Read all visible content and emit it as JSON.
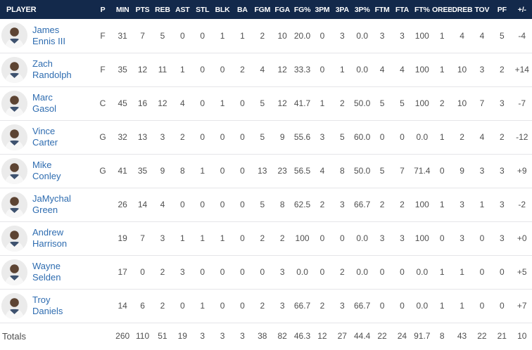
{
  "table": {
    "columns": [
      "PLAYER",
      "P",
      "MIN",
      "PTS",
      "REB",
      "AST",
      "STL",
      "BLK",
      "BA",
      "FGM",
      "FGA",
      "FG%",
      "3PM",
      "3PA",
      "3P%",
      "FTM",
      "FTA",
      "FT%",
      "OREB",
      "DREB",
      "TOV",
      "PF",
      "+/-"
    ],
    "rows": [
      {
        "first": "James",
        "last": "Ennis III",
        "pos": "F",
        "stats": [
          "31",
          "7",
          "5",
          "0",
          "0",
          "1",
          "1",
          "2",
          "10",
          "20.0",
          "0",
          "3",
          "0.0",
          "3",
          "3",
          "100",
          "1",
          "4",
          "4",
          "5",
          "-4"
        ]
      },
      {
        "first": "Zach",
        "last": "Randolph",
        "pos": "F",
        "stats": [
          "35",
          "12",
          "11",
          "1",
          "0",
          "0",
          "2",
          "4",
          "12",
          "33.3",
          "0",
          "1",
          "0.0",
          "4",
          "4",
          "100",
          "1",
          "10",
          "3",
          "2",
          "+14"
        ]
      },
      {
        "first": "Marc",
        "last": "Gasol",
        "pos": "C",
        "stats": [
          "45",
          "16",
          "12",
          "4",
          "0",
          "1",
          "0",
          "5",
          "12",
          "41.7",
          "1",
          "2",
          "50.0",
          "5",
          "5",
          "100",
          "2",
          "10",
          "7",
          "3",
          "-7"
        ]
      },
      {
        "first": "Vince",
        "last": "Carter",
        "pos": "G",
        "stats": [
          "32",
          "13",
          "3",
          "2",
          "0",
          "0",
          "0",
          "5",
          "9",
          "55.6",
          "3",
          "5",
          "60.0",
          "0",
          "0",
          "0.0",
          "1",
          "2",
          "4",
          "2",
          "-12"
        ]
      },
      {
        "first": "Mike",
        "last": "Conley",
        "pos": "G",
        "stats": [
          "41",
          "35",
          "9",
          "8",
          "1",
          "0",
          "0",
          "13",
          "23",
          "56.5",
          "4",
          "8",
          "50.0",
          "5",
          "7",
          "71.4",
          "0",
          "9",
          "3",
          "3",
          "+9"
        ]
      },
      {
        "first": "JaMychal",
        "last": "Green",
        "pos": "",
        "stats": [
          "26",
          "14",
          "4",
          "0",
          "0",
          "0",
          "0",
          "5",
          "8",
          "62.5",
          "2",
          "3",
          "66.7",
          "2",
          "2",
          "100",
          "1",
          "3",
          "1",
          "3",
          "-2"
        ]
      },
      {
        "first": "Andrew",
        "last": "Harrison",
        "pos": "",
        "stats": [
          "19",
          "7",
          "3",
          "1",
          "1",
          "1",
          "0",
          "2",
          "2",
          "100",
          "0",
          "0",
          "0.0",
          "3",
          "3",
          "100",
          "0",
          "3",
          "0",
          "3",
          "+0"
        ]
      },
      {
        "first": "Wayne",
        "last": "Selden",
        "pos": "",
        "stats": [
          "17",
          "0",
          "2",
          "3",
          "0",
          "0",
          "0",
          "0",
          "3",
          "0.0",
          "0",
          "2",
          "0.0",
          "0",
          "0",
          "0.0",
          "1",
          "1",
          "0",
          "0",
          "+5"
        ]
      },
      {
        "first": "Troy",
        "last": "Daniels",
        "pos": "",
        "stats": [
          "14",
          "6",
          "2",
          "0",
          "1",
          "0",
          "0",
          "2",
          "3",
          "66.7",
          "2",
          "3",
          "66.7",
          "0",
          "0",
          "0.0",
          "1",
          "1",
          "0",
          "0",
          "+7"
        ]
      }
    ],
    "totals": {
      "label": "Totals",
      "stats": [
        "260",
        "110",
        "51",
        "19",
        "3",
        "3",
        "3",
        "38",
        "82",
        "46.3",
        "12",
        "27",
        "44.4",
        "22",
        "24",
        "91.7",
        "8",
        "43",
        "22",
        "21",
        "10"
      ]
    }
  },
  "colors": {
    "header_bg": "#13294b",
    "header_text": "#ffffff",
    "link_blue": "#2e6cb0",
    "body_text": "#4f4f4f",
    "divider": "#e5e5e8",
    "avatar_bg": "#ebebeb"
  }
}
